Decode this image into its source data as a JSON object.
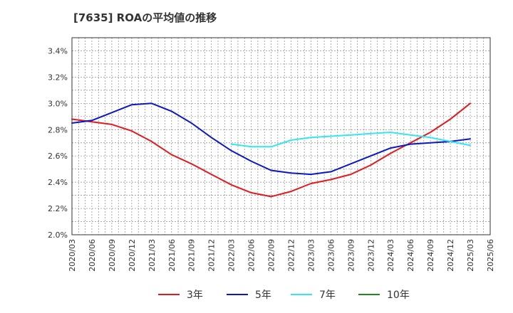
{
  "chart_data": {
    "type": "line",
    "title": "[7635]  ROAの平均値の推移",
    "xlabel": "",
    "ylabel": "",
    "ylim": [
      2.0,
      3.5
    ],
    "grid": true,
    "legend_position": "bottom",
    "y_ticks": [
      "2.0%",
      "2.2%",
      "2.4%",
      "2.6%",
      "2.8%",
      "3.0%",
      "3.2%",
      "3.4%"
    ],
    "x_ticks": [
      "2020/03",
      "2020/06",
      "2020/09",
      "2020/12",
      "2021/03",
      "2021/06",
      "2021/09",
      "2021/12",
      "2022/03",
      "2022/06",
      "2022/09",
      "2022/12",
      "2023/03",
      "2023/06",
      "2023/09",
      "2023/12",
      "2024/03",
      "2024/06",
      "2024/09",
      "2024/12",
      "2025/03",
      "2025/06"
    ],
    "series": [
      {
        "name": "3年",
        "color": "#e41a1c",
        "points": [
          [
            "2020/03",
            2.88
          ],
          [
            "2020/06",
            2.86
          ],
          [
            "2020/09",
            2.84
          ],
          [
            "2020/12",
            2.79
          ],
          [
            "2021/03",
            2.71
          ],
          [
            "2021/06",
            2.61
          ],
          [
            "2021/09",
            2.54
          ],
          [
            "2021/12",
            2.46
          ],
          [
            "2022/03",
            2.38
          ],
          [
            "2022/06",
            2.32
          ],
          [
            "2022/09",
            2.29
          ],
          [
            "2022/12",
            2.33
          ],
          [
            "2023/03",
            2.39
          ],
          [
            "2023/06",
            2.42
          ],
          [
            "2023/09",
            2.46
          ],
          [
            "2023/12",
            2.53
          ],
          [
            "2024/03",
            2.62
          ],
          [
            "2024/06",
            2.7
          ],
          [
            "2024/09",
            2.78
          ],
          [
            "2024/12",
            2.88
          ],
          [
            "2025/03",
            3.0
          ]
        ]
      },
      {
        "name": "5年",
        "color": "#0a18c8",
        "points": [
          [
            "2020/03",
            2.85
          ],
          [
            "2020/06",
            2.87
          ],
          [
            "2020/09",
            2.93
          ],
          [
            "2020/12",
            2.99
          ],
          [
            "2021/03",
            3.0
          ],
          [
            "2021/06",
            2.94
          ],
          [
            "2021/09",
            2.85
          ],
          [
            "2021/12",
            2.74
          ],
          [
            "2022/03",
            2.64
          ],
          [
            "2022/06",
            2.56
          ],
          [
            "2022/09",
            2.49
          ],
          [
            "2022/12",
            2.47
          ],
          [
            "2023/03",
            2.46
          ],
          [
            "2023/06",
            2.48
          ],
          [
            "2023/09",
            2.54
          ],
          [
            "2023/12",
            2.6
          ],
          [
            "2024/03",
            2.66
          ],
          [
            "2024/06",
            2.69
          ],
          [
            "2024/09",
            2.7
          ],
          [
            "2024/12",
            2.71
          ],
          [
            "2025/03",
            2.73
          ]
        ]
      },
      {
        "name": "7年",
        "color": "#33e6f0",
        "points": [
          [
            "2022/03",
            2.69
          ],
          [
            "2022/06",
            2.67
          ],
          [
            "2022/09",
            2.67
          ],
          [
            "2022/12",
            2.72
          ],
          [
            "2023/03",
            2.74
          ],
          [
            "2023/06",
            2.75
          ],
          [
            "2023/09",
            2.76
          ],
          [
            "2023/12",
            2.77
          ],
          [
            "2024/03",
            2.78
          ],
          [
            "2024/06",
            2.76
          ],
          [
            "2024/09",
            2.74
          ],
          [
            "2024/12",
            2.71
          ],
          [
            "2025/03",
            2.68
          ]
        ]
      },
      {
        "name": "10年",
        "color": "#1f8a1f",
        "points": []
      }
    ]
  }
}
